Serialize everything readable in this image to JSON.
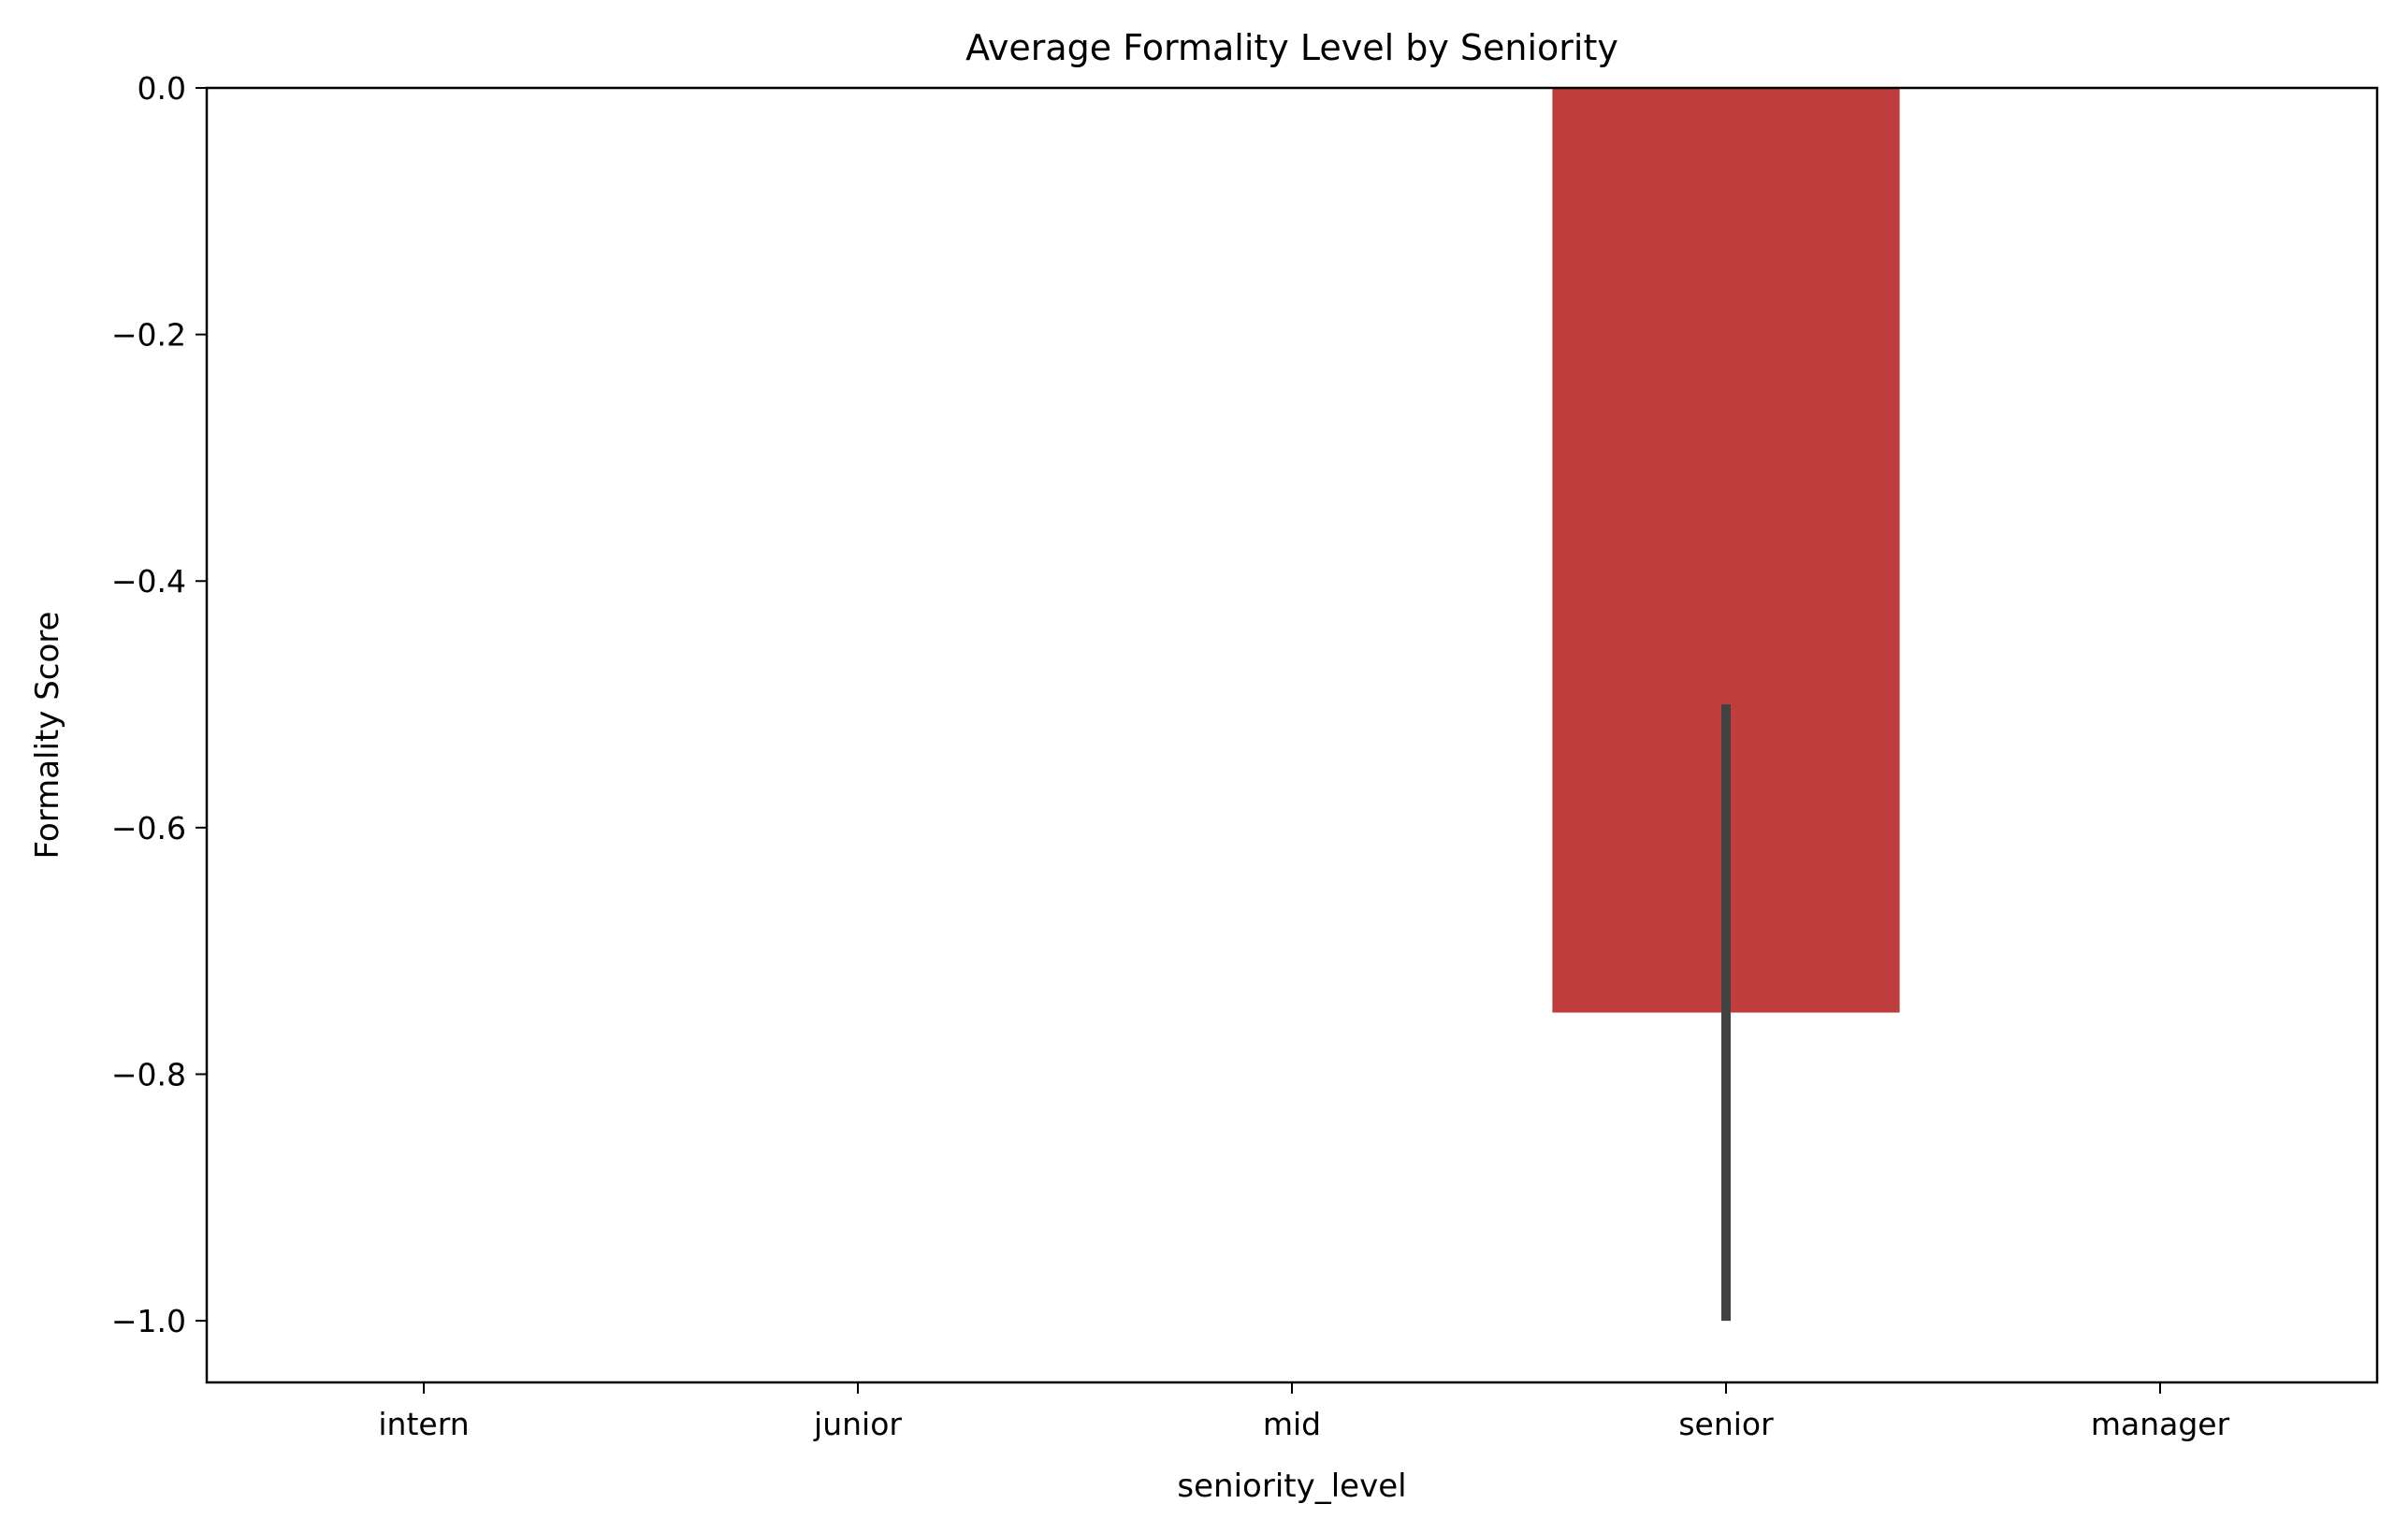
{
  "chart_data": {
    "type": "bar",
    "title": "Average Formality Level by Seniority",
    "xlabel": "seniority_level",
    "ylabel": "Formality Score",
    "categories": [
      "intern",
      "junior",
      "mid",
      "senior",
      "manager"
    ],
    "values": [
      null,
      null,
      null,
      -0.75,
      null
    ],
    "error_bars": [
      null,
      null,
      null,
      [
        -1.0,
        -0.5
      ],
      null
    ],
    "ylim": [
      -1.05,
      0.0
    ],
    "yticks": [
      0.0,
      -0.2,
      -0.4,
      -0.6,
      -0.8,
      -1.0
    ],
    "ytick_labels": [
      "0.0",
      "−0.2",
      "−0.4",
      "−0.6",
      "−0.8",
      "−1.0"
    ],
    "grid": false,
    "colors": {
      "bar": "#bf3d3d",
      "error_bar": "#424242",
      "axes": "#000000"
    }
  }
}
